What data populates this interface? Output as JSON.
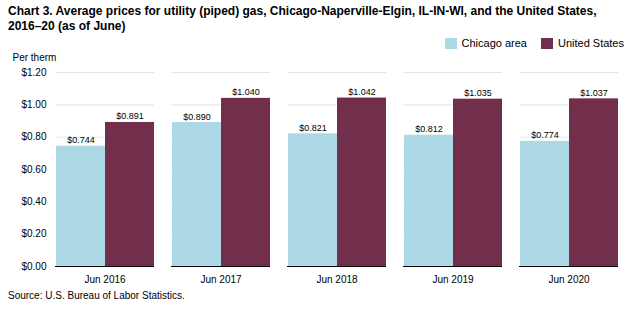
{
  "chart_data": {
    "type": "bar",
    "title": "Chart 3. Average prices for utility (piped) gas, Chicago-Naperville-Elgin, IL-IN-WI, and the United States, 2016–20 (as of June)",
    "ylabel": "Per therm",
    "source": "Source: U.S. Bureau of Labor Statistics.",
    "categories": [
      "Jun 2016",
      "Jun 2017",
      "Jun 2018",
      "Jun 2019",
      "Jun 2020"
    ],
    "series": [
      {
        "name": "Chicago area",
        "color": "#ADD8E6",
        "values": [
          0.744,
          0.89,
          0.821,
          0.812,
          0.774
        ],
        "value_labels": [
          "$0.744",
          "$0.890",
          "$0.821",
          "$0.812",
          "$0.774"
        ]
      },
      {
        "name": "United States",
        "color": "#722F4B",
        "values": [
          0.891,
          1.04,
          1.042,
          1.035,
          1.037
        ],
        "value_labels": [
          "$0.891",
          "$1.040",
          "$1.042",
          "$1.035",
          "$1.037"
        ]
      }
    ],
    "ylim": [
      0.0,
      1.2
    ],
    "yticks": [
      {
        "value": 0.0,
        "label": "$0.00"
      },
      {
        "value": 0.2,
        "label": "$0.20"
      },
      {
        "value": 0.4,
        "label": "$0.40"
      },
      {
        "value": 0.6,
        "label": "$0.60"
      },
      {
        "value": 0.8,
        "label": "$0.80"
      },
      {
        "value": 1.0,
        "label": "$1.00"
      },
      {
        "value": 1.2,
        "label": "$1.20"
      }
    ],
    "grid": true,
    "legend": "upper right",
    "data_labels": true
  }
}
